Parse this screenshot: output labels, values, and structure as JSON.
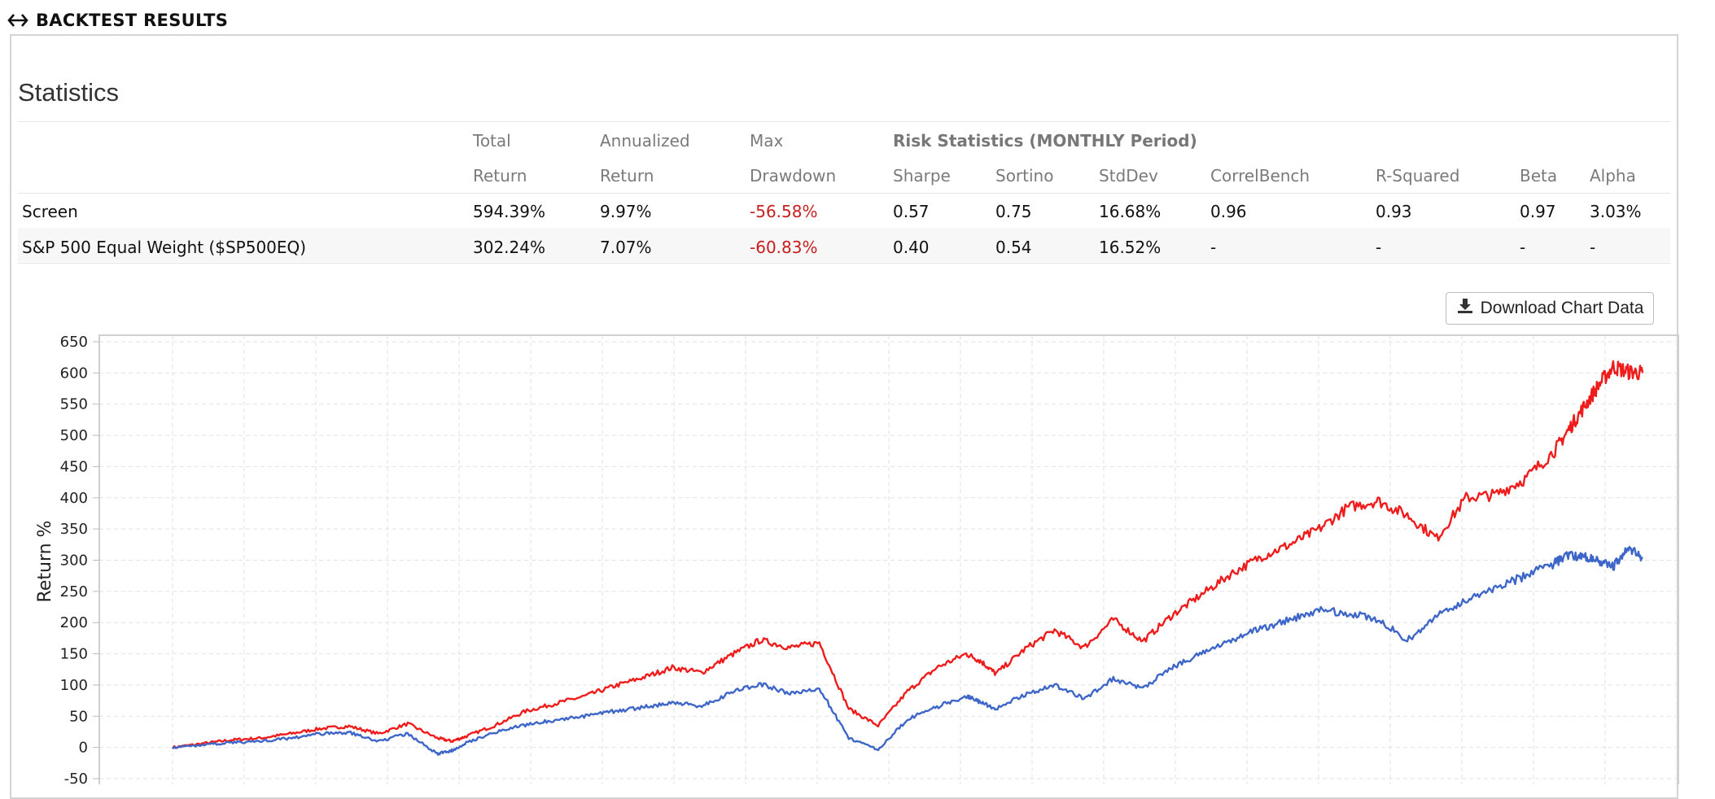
{
  "header": {
    "title": "BACKTEST RESULTS",
    "icon": "expand-horizontal-arrows-icon"
  },
  "statistics": {
    "title": "Statistics",
    "columns": {
      "total_return": [
        "Total",
        "Return"
      ],
      "annualized_return": [
        "Annualized",
        "Return"
      ],
      "max_drawdown": [
        "Max",
        "Drawdown"
      ],
      "risk_group": "Risk Statistics (MONTHLY Period)",
      "sharpe": "Sharpe",
      "sortino": "Sortino",
      "stddev": "StdDev",
      "correlbench": "CorrelBench",
      "rsquared": "R-Squared",
      "beta": "Beta",
      "alpha": "Alpha"
    },
    "rows": [
      {
        "name": "Screen",
        "total_return": "594.39%",
        "annualized_return": "9.97%",
        "max_drawdown": "-56.58%",
        "sharpe": "0.57",
        "sortino": "0.75",
        "stddev": "16.68%",
        "correlbench": "0.96",
        "rsquared": "0.93",
        "beta": "0.97",
        "alpha": "3.03%"
      },
      {
        "name": "S&P 500 Equal Weight ($SP500EQ)",
        "total_return": "302.24%",
        "annualized_return": "7.07%",
        "max_drawdown": "-60.83%",
        "sharpe": "0.40",
        "sortino": "0.54",
        "stddev": "16.52%",
        "correlbench": "-",
        "rsquared": "-",
        "beta": "-",
        "alpha": "-"
      }
    ],
    "negative_color": "#c81e1e"
  },
  "download_button": {
    "label": "Download Chart Data",
    "icon": "download-icon"
  },
  "chart_data": {
    "type": "line",
    "ylabel": "Return %",
    "ylim": [
      -50,
      650
    ],
    "yticks": [
      650,
      600,
      550,
      500,
      450,
      400,
      350,
      300,
      250,
      200,
      150,
      100,
      50,
      0,
      -50
    ],
    "grid": true,
    "x": [
      0,
      0.02,
      0.04,
      0.06,
      0.08,
      0.1,
      0.12,
      0.14,
      0.16,
      0.18,
      0.19,
      0.2,
      0.22,
      0.24,
      0.26,
      0.28,
      0.3,
      0.32,
      0.34,
      0.36,
      0.38,
      0.4,
      0.42,
      0.44,
      0.46,
      0.48,
      0.5,
      0.52,
      0.54,
      0.55,
      0.56,
      0.58,
      0.6,
      0.62,
      0.64,
      0.66,
      0.68,
      0.7,
      0.72,
      0.74,
      0.76,
      0.78,
      0.8,
      0.82,
      0.84,
      0.86,
      0.88,
      0.9,
      0.92,
      0.94,
      0.95,
      0.96,
      0.97,
      0.98,
      0.99,
      1.0
    ],
    "series": [
      {
        "color": "#ef1c1c",
        "values": [
          0,
          6,
          12,
          15,
          22,
          30,
          34,
          22,
          38,
          15,
          10,
          18,
          36,
          58,
          70,
          82,
          98,
          112,
          128,
          120,
          148,
          172,
          160,
          168,
          62,
          35,
          90,
          128,
          150,
          138,
          118,
          158,
          188,
          160,
          205,
          170,
          212,
          245,
          278,
          305,
          325,
          350,
          385,
          395,
          372,
          335,
          400,
          405,
          430,
          475,
          510,
          545,
          580,
          610,
          602,
          600
        ]
      },
      {
        "color": "#3d66c8",
        "values": [
          0,
          4,
          8,
          10,
          15,
          22,
          24,
          10,
          22,
          -10,
          -5,
          8,
          25,
          36,
          44,
          50,
          58,
          64,
          72,
          66,
          88,
          102,
          86,
          95,
          15,
          -3,
          45,
          65,
          82,
          72,
          62,
          85,
          100,
          78,
          110,
          95,
          128,
          150,
          172,
          190,
          205,
          220,
          215,
          205,
          172,
          210,
          235,
          255,
          275,
          295,
          308,
          305,
          300,
          290,
          318,
          305
        ]
      }
    ]
  }
}
